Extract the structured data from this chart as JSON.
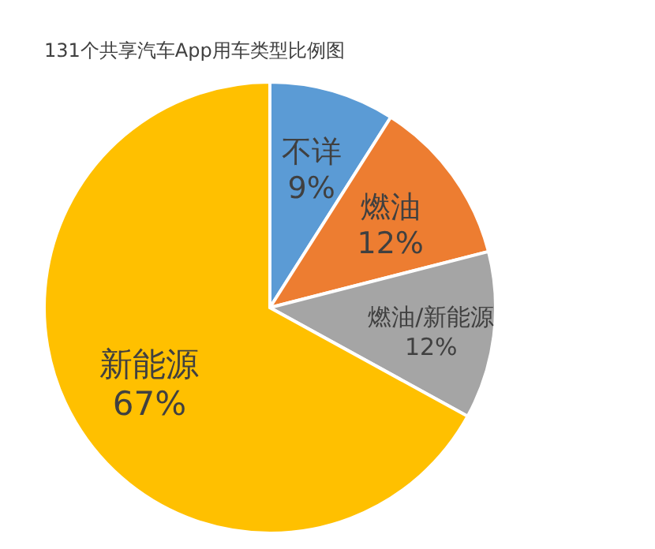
{
  "chart_data": {
    "type": "pie",
    "title": "131个共享汽车App用车类型比例图",
    "categories": [
      "不详",
      "燃油",
      "燃油/新能源",
      "新能源"
    ],
    "values": [
      9,
      12,
      12,
      67
    ],
    "value_labels": [
      "9%",
      "12%",
      "12%",
      "67%"
    ],
    "colors": [
      "#5b9bd5",
      "#ed7d31",
      "#a5a5a5",
      "#ffc000"
    ]
  }
}
